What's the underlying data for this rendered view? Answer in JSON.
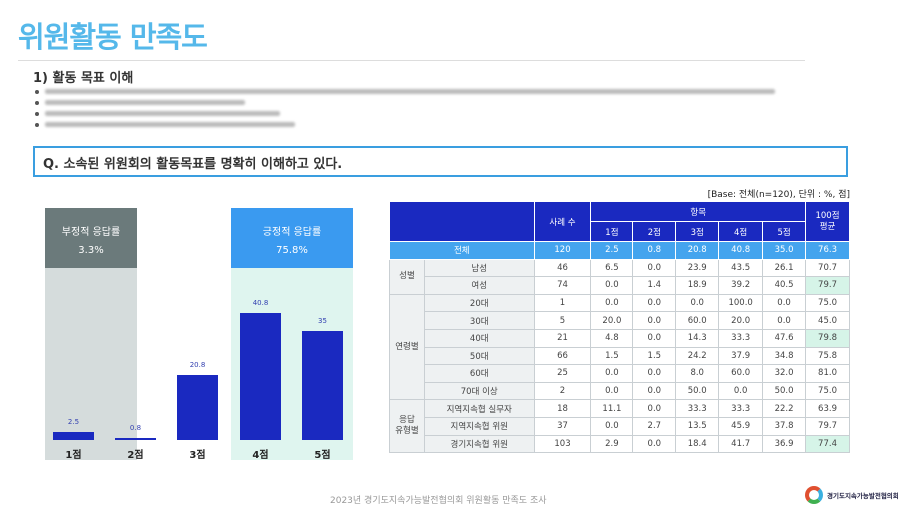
{
  "page": {
    "title": "위원활동 만족도",
    "section": "1) 활동 목표 이해",
    "question": "Q. 소속된 위원회의 활동목표를 명확히 이해하고 있다.",
    "base_note": "[Base: 전체(n=120), 단위 : %, 점]",
    "footer": "2023년 경기도지속가능발전협의회 위원활동 만족도 조사",
    "logo_text": "경기도지속가능발전협의회"
  },
  "summary": {
    "negative_label": "부정적 응답률",
    "negative_value": "3.3%",
    "positive_label": "긍정적 응답률",
    "positive_value": "75.8%",
    "negative_color": "#6b7a7b",
    "positive_color": "#3a9af0"
  },
  "chart_data": {
    "type": "bar",
    "categories": [
      "1점",
      "2점",
      "3점",
      "4점",
      "5점"
    ],
    "values": [
      2.5,
      0.8,
      20.8,
      40.8,
      35
    ],
    "labels": [
      "2.5",
      "0.8",
      "20.8",
      "40.8",
      "35"
    ],
    "color": "#1a29c0"
  },
  "table": {
    "headers": {
      "count": "사례 수",
      "items": "항목",
      "cols": [
        "1점",
        "2점",
        "3점",
        "4점",
        "5점"
      ],
      "avg": "100점\n평균"
    },
    "total": {
      "label": "전체",
      "values": [
        "120",
        "2.5",
        "0.8",
        "20.8",
        "40.8",
        "35.0",
        "76.3"
      ]
    },
    "groups": [
      {
        "name": "성별",
        "rows": [
          {
            "label": "남성",
            "values": [
              "46",
              "6.5",
              "0.0",
              "23.9",
              "43.5",
              "26.1",
              "70.7"
            ]
          },
          {
            "label": "여성",
            "values": [
              "74",
              "0.0",
              "1.4",
              "18.9",
              "39.2",
              "40.5",
              "79.7"
            ],
            "highlight": true
          }
        ]
      },
      {
        "name": "연령별",
        "rows": [
          {
            "label": "20대",
            "values": [
              "1",
              "0.0",
              "0.0",
              "0.0",
              "100.0",
              "0.0",
              "75.0"
            ]
          },
          {
            "label": "30대",
            "values": [
              "5",
              "20.0",
              "0.0",
              "60.0",
              "20.0",
              "0.0",
              "45.0"
            ]
          },
          {
            "label": "40대",
            "values": [
              "21",
              "4.8",
              "0.0",
              "14.3",
              "33.3",
              "47.6",
              "79.8"
            ],
            "highlight": true
          },
          {
            "label": "50대",
            "values": [
              "66",
              "1.5",
              "1.5",
              "24.2",
              "37.9",
              "34.8",
              "75.8"
            ]
          },
          {
            "label": "60대",
            "values": [
              "25",
              "0.0",
              "0.0",
              "8.0",
              "60.0",
              "32.0",
              "81.0"
            ]
          },
          {
            "label": "70대 이상",
            "values": [
              "2",
              "0.0",
              "0.0",
              "50.0",
              "0.0",
              "50.0",
              "75.0"
            ]
          }
        ]
      },
      {
        "name": "응답\n유형별",
        "rows": [
          {
            "label": "지역지속협 실무자",
            "values": [
              "18",
              "11.1",
              "0.0",
              "33.3",
              "33.3",
              "22.2",
              "63.9"
            ]
          },
          {
            "label": "지역지속협 위원",
            "values": [
              "37",
              "0.0",
              "2.7",
              "13.5",
              "45.9",
              "37.8",
              "79.7"
            ]
          },
          {
            "label": "경기지속협 위원",
            "values": [
              "103",
              "2.9",
              "0.0",
              "18.4",
              "41.7",
              "36.9",
              "77.4"
            ],
            "highlight": true
          }
        ]
      }
    ]
  }
}
